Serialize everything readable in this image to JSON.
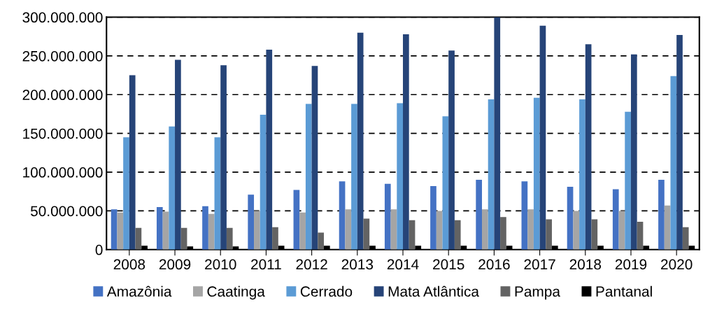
{
  "chart_data": {
    "type": "bar",
    "categories": [
      "2008",
      "2009",
      "2010",
      "2011",
      "2012",
      "2013",
      "2014",
      "2015",
      "2016",
      "2017",
      "2018",
      "2019",
      "2020"
    ],
    "series": [
      {
        "name": "Amazônia",
        "color": "#4472c4",
        "values": [
          52000000,
          55000000,
          56000000,
          71000000,
          77000000,
          88000000,
          85000000,
          82000000,
          90000000,
          88000000,
          81000000,
          78000000,
          90000000
        ]
      },
      {
        "name": "Caatinga",
        "color": "#a5a5a5",
        "values": [
          48000000,
          49000000,
          46000000,
          50000000,
          48000000,
          52000000,
          52000000,
          50000000,
          52000000,
          52000000,
          50000000,
          50000000,
          57000000
        ]
      },
      {
        "name": "Cerrado",
        "color": "#5b9bd5",
        "values": [
          145000000,
          159000000,
          145000000,
          174000000,
          188000000,
          188000000,
          189000000,
          172000000,
          194000000,
          196000000,
          194000000,
          178000000,
          224000000
        ]
      },
      {
        "name": "Mata Atlântica",
        "color": "#264478",
        "values": [
          225000000,
          245000000,
          238000000,
          258000000,
          237000000,
          280000000,
          278000000,
          257000000,
          300000000,
          289000000,
          265000000,
          252000000,
          277000000
        ]
      },
      {
        "name": "Pampa",
        "color": "#636363",
        "values": [
          28000000,
          28000000,
          28000000,
          29000000,
          22000000,
          40000000,
          38000000,
          38000000,
          42000000,
          39000000,
          39000000,
          36000000,
          29000000
        ]
      },
      {
        "name": "Pantanal",
        "color": "#000000",
        "values": [
          5000000,
          4000000,
          4000000,
          5000000,
          5000000,
          5000000,
          5000000,
          5000000,
          5000000,
          5000000,
          5000000,
          5000000,
          5000000
        ]
      }
    ],
    "ylim": [
      0,
      300000000
    ],
    "yticks": [
      0,
      {
        "value": 50000000,
        "label": "50.000.000"
      },
      {
        "value": 100000000,
        "label": "100.000.000"
      },
      {
        "value": 150000000,
        "label": "150.000.000"
      },
      {
        "value": 200000000,
        "label": "200.000.000"
      },
      {
        "value": 250000000,
        "label": "250.000.000"
      },
      {
        "value": 300000000,
        "label": "300.000.000"
      }
    ],
    "grid": "y",
    "legend": "bottom"
  }
}
